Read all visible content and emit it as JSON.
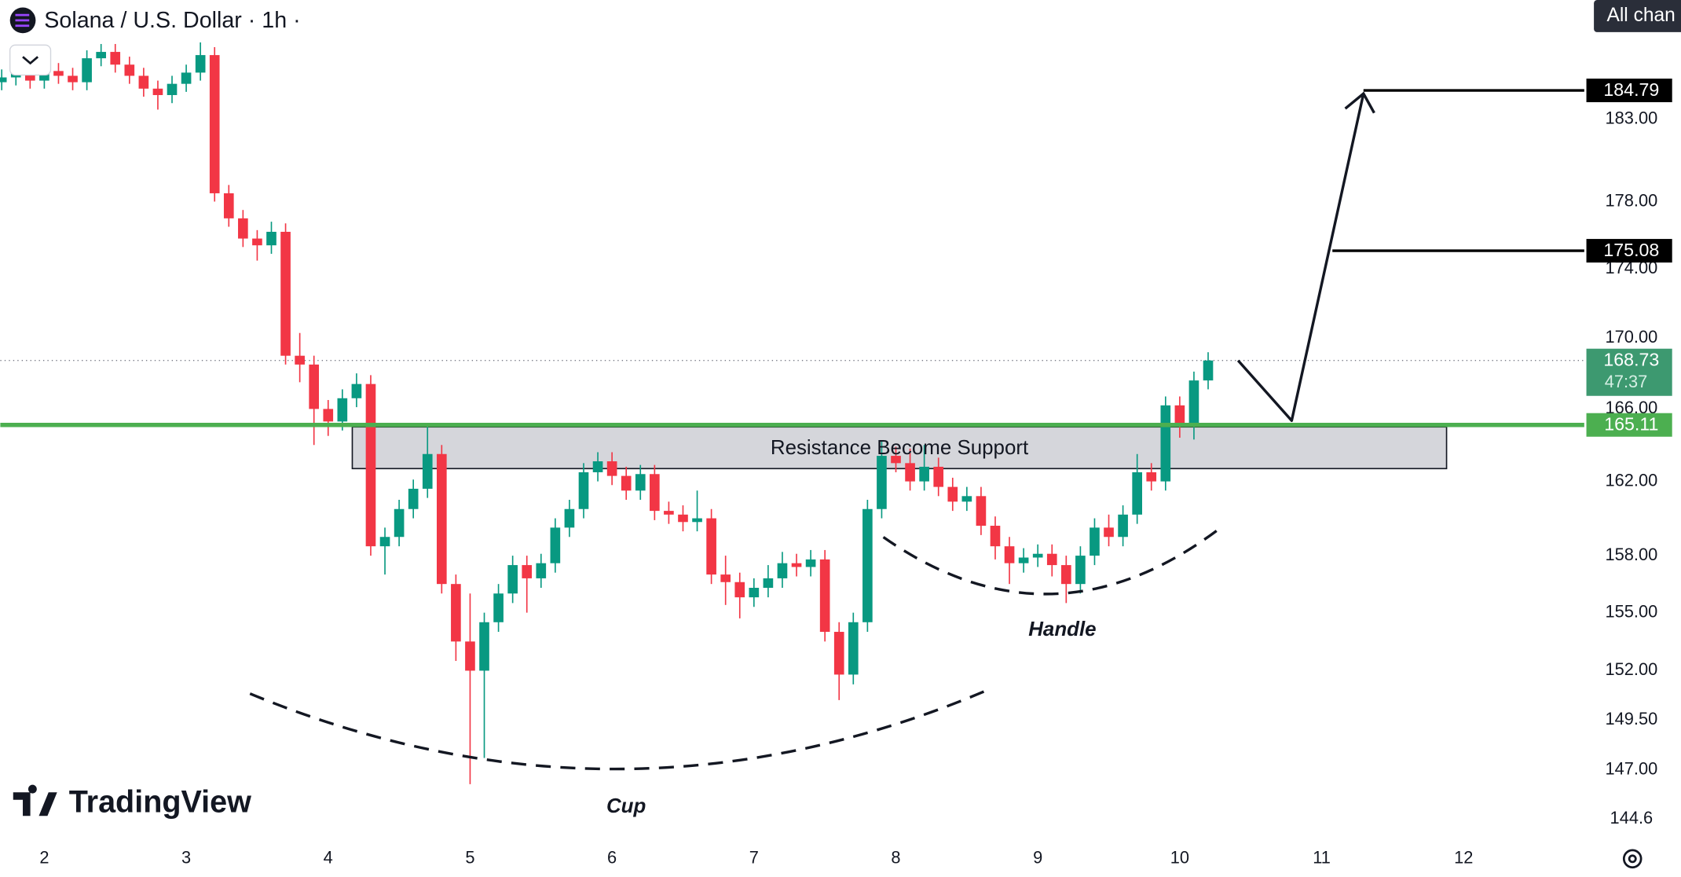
{
  "chart_data": {
    "type": "candlestick",
    "title": "Solana / U.S. Dollar · 1h ·",
    "watermark": "TradingView",
    "button": "All chan",
    "annotations": [
      "Cup",
      "Handle"
    ],
    "zone": {
      "label": "Resistance Become Support",
      "top": 165.0,
      "bottom": 162.7,
      "x": [
        4.17,
        11.88
      ]
    },
    "support_level": 165.11,
    "targets": [
      175.08,
      184.79
    ],
    "last_price": 168.73,
    "countdown": "47:37",
    "log": true,
    "grid": false,
    "up_color": "#089981",
    "down_color": "#f23645",
    "support_color": "#4caf50",
    "target_color": "#000000",
    "xlim": [
      1.69,
      12.85
    ],
    "xticks": [
      2,
      3,
      4,
      5,
      6,
      7,
      8,
      9,
      10,
      11,
      12
    ],
    "ylim": [
      143.5,
      190.5
    ],
    "yticks": [
      {
        "value": 183,
        "label": "183.00"
      },
      {
        "value": 178,
        "label": "178.00"
      },
      {
        "value": 174,
        "label": "174.00"
      },
      {
        "value": 170,
        "label": "170.00"
      },
      {
        "value": 166,
        "label": "166.00"
      },
      {
        "value": 162,
        "label": "162.00"
      },
      {
        "value": 158,
        "label": "158.00"
      },
      {
        "value": 155,
        "label": "155.00"
      },
      {
        "value": 152,
        "label": "152.00"
      },
      {
        "value": 149.5,
        "label": "149.50"
      },
      {
        "value": 147,
        "label": "147.00"
      },
      144.6
    ],
    "x": [
      1.7,
      1.8,
      1.9,
      2.0,
      2.1,
      2.2,
      2.3,
      2.4,
      2.5,
      2.6,
      2.7,
      2.8,
      2.9,
      3.0,
      3.1,
      3.2,
      3.3,
      3.4,
      3.5,
      3.6,
      3.7,
      3.8,
      3.9,
      4.0,
      4.1,
      4.2,
      4.3,
      4.4,
      4.5,
      4.6,
      4.7,
      4.8,
      4.9,
      5.0,
      5.1,
      5.2,
      5.3,
      5.4,
      5.5,
      5.6,
      5.7,
      5.8,
      5.9,
      6.0,
      6.1,
      6.2,
      6.3,
      6.4,
      6.5,
      6.6,
      6.7,
      6.8,
      6.9,
      7.0,
      7.1,
      7.2,
      7.3,
      7.4,
      7.5,
      7.6,
      7.7,
      7.8,
      7.9,
      8.0,
      8.1,
      8.2,
      8.3,
      8.4,
      8.5,
      8.6,
      8.7,
      8.8,
      8.9,
      9.0,
      9.1,
      9.2,
      9.3,
      9.4,
      9.5,
      9.6,
      9.7,
      9.8,
      9.9,
      10.0,
      10.1,
      10.2
    ],
    "open": [
      185.3,
      185.6,
      185.9,
      185.4,
      186.0,
      185.7,
      185.3,
      186.8,
      187.2,
      186.4,
      185.7,
      184.9,
      184.5,
      185.2,
      185.9,
      187.0,
      178.5,
      177.0,
      175.8,
      175.4,
      176.2,
      169.0,
      168.5,
      166.0,
      165.3,
      166.6,
      167.4,
      158.5,
      159.0,
      160.5,
      161.6,
      163.5,
      156.5,
      153.5,
      152.0,
      154.5,
      156.0,
      157.5,
      156.8,
      157.6,
      159.5,
      160.5,
      162.5,
      163.1,
      162.3,
      161.5,
      162.4,
      160.4,
      160.2,
      159.8,
      160.0,
      157.0,
      156.6,
      155.8,
      156.3,
      156.8,
      157.6,
      157.4,
      157.8,
      154.0,
      151.8,
      154.5,
      160.5,
      163.4,
      163.0,
      162.0,
      162.8,
      161.7,
      160.9,
      161.2,
      159.6,
      158.5,
      157.6,
      157.9,
      158.1,
      157.5,
      156.5,
      158.0,
      159.5,
      159.0,
      160.2,
      162.5,
      162.0,
      166.2,
      165.2,
      167.6
    ],
    "high": [
      186.1,
      186.4,
      186.4,
      186.5,
      186.5,
      186.2,
      187.3,
      187.7,
      187.7,
      186.9,
      186.2,
      185.4,
      185.7,
      186.4,
      187.8,
      187.5,
      179.0,
      177.5,
      176.3,
      176.8,
      176.7,
      170.3,
      169.0,
      166.5,
      167.1,
      168.0,
      167.9,
      159.5,
      161.0,
      162.1,
      165.1,
      164.0,
      157.0,
      156.0,
      155.0,
      156.5,
      158.0,
      158.0,
      158.1,
      160.0,
      161.0,
      163.0,
      163.6,
      163.6,
      162.8,
      162.9,
      162.9,
      160.9,
      160.7,
      161.5,
      160.5,
      158.0,
      157.1,
      156.8,
      157.5,
      158.2,
      158.1,
      158.3,
      158.3,
      154.5,
      155.0,
      161.0,
      164.2,
      163.9,
      163.8,
      164.0,
      163.3,
      162.2,
      161.7,
      161.7,
      160.1,
      159.0,
      158.4,
      158.6,
      158.6,
      158.0,
      158.5,
      160.0,
      160.2,
      160.7,
      163.5,
      163.0,
      166.7,
      166.7,
      168.1,
      169.2
    ],
    "low": [
      184.8,
      185.1,
      184.9,
      184.9,
      185.2,
      184.8,
      184.8,
      186.3,
      185.9,
      185.2,
      184.4,
      183.6,
      184.0,
      184.7,
      185.4,
      178.0,
      176.5,
      175.3,
      174.5,
      174.9,
      168.5,
      167.5,
      164.0,
      164.5,
      164.8,
      166.1,
      158.0,
      157.0,
      158.5,
      160.0,
      161.1,
      156.0,
      152.5,
      146.3,
      147.6,
      154.0,
      155.5,
      155.0,
      156.3,
      157.1,
      159.0,
      160.0,
      162.0,
      161.8,
      161.0,
      161.0,
      159.9,
      159.7,
      159.3,
      159.3,
      156.5,
      155.4,
      154.7,
      155.3,
      155.8,
      156.3,
      156.9,
      156.9,
      153.5,
      150.5,
      151.3,
      154.0,
      160.0,
      162.5,
      161.5,
      161.5,
      161.2,
      160.4,
      160.4,
      159.1,
      157.8,
      156.5,
      157.1,
      157.4,
      156.9,
      155.5,
      156.0,
      157.5,
      158.5,
      158.5,
      159.7,
      161.5,
      161.5,
      164.4,
      164.3,
      167.1
    ],
    "close": [
      185.6,
      185.9,
      185.4,
      186.0,
      185.7,
      185.3,
      186.8,
      187.2,
      186.4,
      185.7,
      184.9,
      184.5,
      185.2,
      185.9,
      187.0,
      178.5,
      177.0,
      175.8,
      175.4,
      176.2,
      169.0,
      168.5,
      166.0,
      165.3,
      166.6,
      167.4,
      158.5,
      159.0,
      160.5,
      161.6,
      163.5,
      156.5,
      153.5,
      152.0,
      154.5,
      156.0,
      157.5,
      156.8,
      157.6,
      159.5,
      160.5,
      162.5,
      163.1,
      162.3,
      161.5,
      162.4,
      160.4,
      160.2,
      159.8,
      160.0,
      157.0,
      156.6,
      155.8,
      156.3,
      156.8,
      157.6,
      157.4,
      157.8,
      154.0,
      151.8,
      154.5,
      160.5,
      163.4,
      163.0,
      162.0,
      162.8,
      161.7,
      160.9,
      161.2,
      159.6,
      158.5,
      157.6,
      157.9,
      158.1,
      157.5,
      156.5,
      158.0,
      159.5,
      159.0,
      160.2,
      162.5,
      162.0,
      166.2,
      165.2,
      167.6,
      168.73
    ]
  }
}
